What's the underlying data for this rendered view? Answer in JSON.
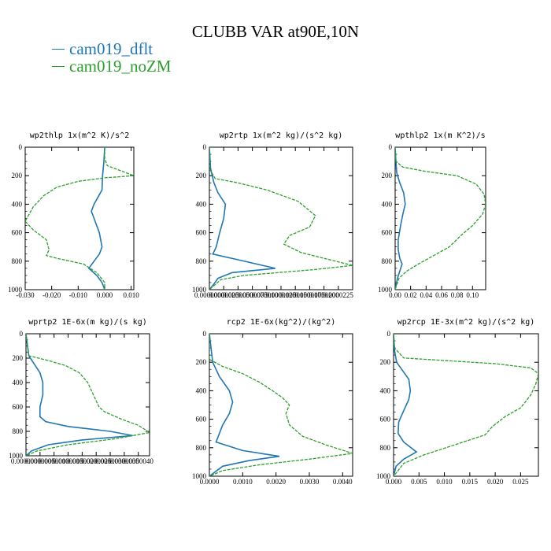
{
  "title": "CLUBB VAR at90E,10N",
  "legend": [
    {
      "label": "cam019_dflt",
      "color": "#1f77b4"
    },
    {
      "label": "cam019_noZM",
      "color": "#2ca02c"
    }
  ],
  "chart_data": [
    {
      "type": "line",
      "title": "wp2thlp   1x(m^2 K)/s^2",
      "xlim": [
        -0.03,
        0.011
      ],
      "xticks": [
        -0.03,
        -0.02,
        -0.01,
        0.0,
        0.01
      ],
      "xtick_labels": [
        "-0.030",
        "-0.020",
        "-0.010",
        "0.000",
        "0.010"
      ],
      "ylim": [
        1000,
        0
      ],
      "yticks": [
        0,
        200,
        400,
        600,
        800,
        1000
      ],
      "ytick_labels": [
        "0",
        "200",
        "400",
        "600",
        "800",
        "1000"
      ],
      "series": [
        {
          "name": "cam019_dflt",
          "points": [
            [
              0.0,
              0
            ],
            [
              -0.0003,
              100
            ],
            [
              -0.0008,
              200
            ],
            [
              -0.001,
              300
            ],
            [
              -0.0025,
              350
            ],
            [
              -0.004,
              400
            ],
            [
              -0.005,
              450
            ],
            [
              -0.004,
              500
            ],
            [
              -0.002,
              600
            ],
            [
              -0.001,
              700
            ],
            [
              -0.002,
              750
            ],
            [
              -0.004,
              800
            ],
            [
              -0.006,
              850
            ],
            [
              -0.003,
              900
            ],
            [
              -0.001,
              950
            ],
            [
              0.0,
              1000
            ]
          ]
        },
        {
          "name": "cam019_noZM",
          "points": [
            [
              0.0,
              0
            ],
            [
              0.0,
              80
            ],
            [
              0.001,
              130
            ],
            [
              0.011,
              200
            ],
            [
              0.0,
              215
            ],
            [
              -0.01,
              240
            ],
            [
              -0.018,
              280
            ],
            [
              -0.023,
              340
            ],
            [
              -0.027,
              420
            ],
            [
              -0.03,
              520
            ],
            [
              -0.027,
              580
            ],
            [
              -0.022,
              650
            ],
            [
              -0.021,
              720
            ],
            [
              -0.022,
              760
            ],
            [
              -0.018,
              780
            ],
            [
              -0.008,
              820
            ],
            [
              -0.003,
              880
            ],
            [
              0.0,
              950
            ],
            [
              0.0,
              1000
            ]
          ]
        }
      ]
    },
    {
      "type": "line",
      "title": "wp2rtp   1x(m^2 kg)/(s^2 kg)",
      "xlim": [
        0.0,
        2.5e-05
      ],
      "xticks": [
        0.0,
        2.5e-06,
        5e-06,
        7.5e-06,
        1e-05,
        1.25e-05,
        1.5e-05,
        1.75e-05,
        2e-05,
        2.25e-05
      ],
      "xtick_labels": [
        "0.0000000",
        "0.0000025",
        "0.0000050",
        "0.0000075",
        "0.0000100",
        "0.0000125",
        "0.0000150",
        "0.0000175",
        "0.0000200",
        "0.0000225"
      ],
      "ylim": [
        1000,
        0
      ],
      "yticks": [
        0,
        200,
        400,
        600,
        800,
        1000
      ],
      "ytick_labels": [
        "0",
        "200",
        "400",
        "600",
        "800",
        "1000"
      ],
      "series": [
        {
          "name": "cam019_dflt",
          "points": [
            [
              0.0,
              0
            ],
            [
              2e-07,
              150
            ],
            [
              8e-07,
              250
            ],
            [
              1.5e-06,
              320
            ],
            [
              2.8e-06,
              400
            ],
            [
              2.5e-06,
              500
            ],
            [
              1.8e-06,
              600
            ],
            [
              1.2e-06,
              700
            ],
            [
              6e-07,
              750
            ],
            [
              5e-06,
              790
            ],
            [
              1.15e-05,
              850
            ],
            [
              4e-06,
              880
            ],
            [
              1.5e-06,
              920
            ],
            [
              8e-07,
              960
            ],
            [
              0.0,
              1000
            ]
          ]
        },
        {
          "name": "cam019_noZM",
          "points": [
            [
              0.0,
              0
            ],
            [
              0.0,
              150
            ],
            [
              1e-06,
              220
            ],
            [
              5e-06,
              250
            ],
            [
              1e-05,
              300
            ],
            [
              1.55e-05,
              380
            ],
            [
              1.85e-05,
              480
            ],
            [
              1.75e-05,
              560
            ],
            [
              1.4e-05,
              620
            ],
            [
              1.3e-05,
              680
            ],
            [
              1.6e-05,
              740
            ],
            [
              2.2e-05,
              800
            ],
            [
              2.5e-05,
              830
            ],
            [
              1.8e-05,
              860
            ],
            [
              6e-06,
              900
            ],
            [
              2e-06,
              930
            ],
            [
              0.0,
              1000
            ]
          ]
        }
      ]
    },
    {
      "type": "line",
      "title": "wpthlp2   1x(m K^2)/s",
      "xlim": [
        0.0,
        0.117
      ],
      "xticks": [
        0.0,
        0.02,
        0.04,
        0.06,
        0.08,
        0.1
      ],
      "xtick_labels": [
        "0.00",
        "0.02",
        "0.04",
        "0.06",
        "0.08",
        "0.10"
      ],
      "ylim": [
        1000,
        0
      ],
      "yticks": [
        0,
        200,
        400,
        600,
        800,
        1000
      ],
      "ytick_labels": [
        "0",
        "200",
        "400",
        "600",
        "800",
        "1000"
      ],
      "series": [
        {
          "name": "cam019_dflt",
          "points": [
            [
              0.0,
              0
            ],
            [
              0.001,
              100
            ],
            [
              0.002,
              180
            ],
            [
              0.006,
              250
            ],
            [
              0.011,
              320
            ],
            [
              0.013,
              400
            ],
            [
              0.01,
              470
            ],
            [
              0.007,
              550
            ],
            [
              0.004,
              650
            ],
            [
              0.004,
              720
            ],
            [
              0.006,
              780
            ],
            [
              0.009,
              820
            ],
            [
              0.006,
              870
            ],
            [
              0.003,
              920
            ],
            [
              0.0,
              1000
            ]
          ]
        },
        {
          "name": "cam019_noZM",
          "points": [
            [
              0.0,
              0
            ],
            [
              0.001,
              100
            ],
            [
              0.01,
              140
            ],
            [
              0.04,
              170
            ],
            [
              0.08,
              200
            ],
            [
              0.105,
              260
            ],
            [
              0.115,
              330
            ],
            [
              0.117,
              400
            ],
            [
              0.113,
              470
            ],
            [
              0.1,
              550
            ],
            [
              0.085,
              620
            ],
            [
              0.07,
              700
            ],
            [
              0.05,
              760
            ],
            [
              0.03,
              820
            ],
            [
              0.015,
              870
            ],
            [
              0.005,
              920
            ],
            [
              0.0,
              1000
            ]
          ]
        }
      ]
    },
    {
      "type": "line",
      "title": "wprtp2   1E-6x(m kg)/(s kg)",
      "xlim": [
        0.0,
        4.4e-06
      ],
      "xticks": [
        0.0,
        5e-07,
        1e-06,
        1.5e-06,
        2e-06,
        2.5e-06,
        3e-06,
        3.5e-06,
        4e-06
      ],
      "xtick_labels": [
        "0.0000000",
        "0.0000005",
        "0.0000010",
        "0.0000015",
        "0.0000020",
        "0.0000025",
        "0.0000030",
        "0.0000035",
        "0.0000040"
      ],
      "ylim": [
        1000,
        0
      ],
      "yticks": [
        0,
        200,
        400,
        600,
        800,
        1000
      ],
      "ytick_labels": [
        "0",
        "200",
        "400",
        "600",
        "800",
        "1000"
      ],
      "series": [
        {
          "name": "cam019_dflt",
          "points": [
            [
              0.0,
              0
            ],
            [
              1e-07,
              180
            ],
            [
              3e-07,
              250
            ],
            [
              5e-07,
              320
            ],
            [
              6e-07,
              400
            ],
            [
              6e-07,
              500
            ],
            [
              5e-07,
              600
            ],
            [
              5e-07,
              680
            ],
            [
              7e-07,
              720
            ],
            [
              1.5e-06,
              760
            ],
            [
              3e-06,
              800
            ],
            [
              3.8e-06,
              835
            ],
            [
              2e-06,
              870
            ],
            [
              8e-07,
              910
            ],
            [
              2e-07,
              960
            ],
            [
              0.0,
              1000
            ]
          ]
        },
        {
          "name": "cam019_noZM",
          "points": [
            [
              0.0,
              0
            ],
            [
              1e-07,
              180
            ],
            [
              8e-07,
              220
            ],
            [
              1.4e-06,
              260
            ],
            [
              1.9e-06,
              320
            ],
            [
              2.2e-06,
              400
            ],
            [
              2.4e-06,
              500
            ],
            [
              2.6e-06,
              600
            ],
            [
              2.8e-06,
              640
            ],
            [
              3.4e-06,
              700
            ],
            [
              4e-06,
              750
            ],
            [
              4.4e-06,
              810
            ],
            [
              3.2e-06,
              860
            ],
            [
              1.5e-06,
              910
            ],
            [
              4e-07,
              960
            ],
            [
              0.0,
              1000
            ]
          ]
        }
      ]
    },
    {
      "type": "line",
      "title": "rcp2   1E-6x(kg^2)/(kg^2)",
      "xlim": [
        0.0,
        0.0043
      ],
      "xticks": [
        0.0,
        0.001,
        0.002,
        0.003,
        0.004
      ],
      "xtick_labels": [
        "0.0000",
        "0.0010",
        "0.0020",
        "0.0030",
        "0.0040"
      ],
      "ylim": [
        1000,
        0
      ],
      "yticks": [
        0,
        200,
        400,
        600,
        800,
        1000
      ],
      "ytick_labels": [
        "0",
        "200",
        "400",
        "600",
        "800",
        "1000"
      ],
      "series": [
        {
          "name": "cam019_dflt",
          "points": [
            [
              0.0,
              0
            ],
            [
              0.0001,
              200
            ],
            [
              0.0003,
              300
            ],
            [
              0.0006,
              400
            ],
            [
              0.0007,
              480
            ],
            [
              0.0006,
              560
            ],
            [
              0.0004,
              640
            ],
            [
              0.0003,
              700
            ],
            [
              0.0002,
              760
            ],
            [
              0.001,
              820
            ],
            [
              0.0021,
              860
            ],
            [
              0.0012,
              890
            ],
            [
              0.0004,
              930
            ],
            [
              0.0,
              1000
            ]
          ]
        },
        {
          "name": "cam019_noZM",
          "points": [
            [
              0.0,
              0
            ],
            [
              0.0,
              180
            ],
            [
              0.0004,
              230
            ],
            [
              0.001,
              280
            ],
            [
              0.0015,
              340
            ],
            [
              0.0019,
              400
            ],
            [
              0.0022,
              450
            ],
            [
              0.0024,
              500
            ],
            [
              0.0023,
              560
            ],
            [
              0.0024,
              640
            ],
            [
              0.0028,
              720
            ],
            [
              0.0035,
              780
            ],
            [
              0.0043,
              840
            ],
            [
              0.003,
              880
            ],
            [
              0.0015,
              920
            ],
            [
              0.0004,
              960
            ],
            [
              0.0,
              1000
            ]
          ]
        }
      ]
    },
    {
      "type": "line",
      "title": "wp2rcp   1E-3x(m^2 kg)/(s^2 kg)",
      "xlim": [
        0.0,
        0.0285
      ],
      "xticks": [
        0.0,
        0.005,
        0.01,
        0.015,
        0.02,
        0.025
      ],
      "xtick_labels": [
        "0.000",
        "0.005",
        "0.010",
        "0.015",
        "0.020",
        "0.025"
      ],
      "ylim": [
        1000,
        0
      ],
      "yticks": [
        0,
        200,
        400,
        600,
        800,
        1000
      ],
      "ytick_labels": [
        "0",
        "200",
        "400",
        "600",
        "800",
        "1000"
      ],
      "series": [
        {
          "name": "cam019_dflt",
          "points": [
            [
              0.0,
              0
            ],
            [
              0.0002,
              120
            ],
            [
              0.0006,
              200
            ],
            [
              0.0018,
              260
            ],
            [
              0.003,
              320
            ],
            [
              0.0033,
              400
            ],
            [
              0.003,
              460
            ],
            [
              0.002,
              540
            ],
            [
              0.001,
              620
            ],
            [
              0.0009,
              700
            ],
            [
              0.002,
              760
            ],
            [
              0.0045,
              830
            ],
            [
              0.002,
              880
            ],
            [
              0.0005,
              930
            ],
            [
              0.0,
              1000
            ]
          ]
        },
        {
          "name": "cam019_noZM",
          "points": [
            [
              0.0,
              0
            ],
            [
              0.0002,
              100
            ],
            [
              0.002,
              170
            ],
            [
              0.02,
              210
            ],
            [
              0.027,
              240
            ],
            [
              0.0285,
              280
            ],
            [
              0.028,
              350
            ],
            [
              0.027,
              430
            ],
            [
              0.025,
              520
            ],
            [
              0.022,
              580
            ],
            [
              0.0195,
              650
            ],
            [
              0.018,
              710
            ],
            [
              0.012,
              780
            ],
            [
              0.006,
              850
            ],
            [
              0.002,
              910
            ],
            [
              0.0,
              1000
            ]
          ]
        }
      ]
    }
  ]
}
